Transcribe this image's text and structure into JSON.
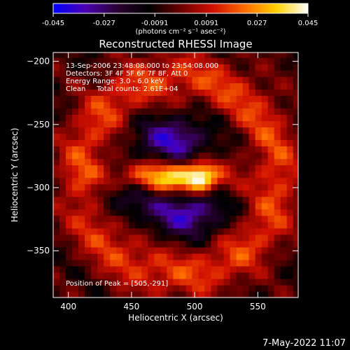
{
  "colorbar": {
    "ticks": [
      "-0.045",
      "-0.027",
      "-0.0091",
      "0.0091",
      "0.027",
      "0.045"
    ],
    "tick_values": [
      -0.045,
      -0.027,
      -0.0091,
      0.0091,
      0.027,
      0.045
    ],
    "range": [
      -0.045,
      0.045
    ],
    "colormap": [
      "#0000ff",
      "#4b00b4",
      "#2a0033",
      "#000000",
      "#6a0000",
      "#d01000",
      "#ff6a00",
      "#ffd000",
      "#ffffff"
    ]
  },
  "chart_data": {
    "type": "heatmap",
    "title": "Reconstructed RHESSI Image",
    "xlabel": "Heliocentric X (arcsec)",
    "ylabel": "Heliocentric Y (arcsec)",
    "colorbar_label": "(photons cm⁻² s⁻¹ asec⁻²)",
    "xlim": [
      388,
      582
    ],
    "ylim": [
      -387,
      -193
    ],
    "xticks": [
      400,
      450,
      500,
      550
    ],
    "yticks": [
      -200,
      -250,
      -300,
      -350
    ],
    "grid": false,
    "annotations": {
      "time": "13-Sep-2006 23:48:08.000 to 23:54:08.000",
      "detectors": "Detectors: 3F 4F 5F 6F 7F 8F, Att 0",
      "energy": "Energy Range: 3.0 - 6.0 keV",
      "method": "Clean     Total counts: 2.61E+04",
      "peak": "Position of Peak = [505,-291]"
    },
    "features": {
      "peak": [
        505,
        -291
      ],
      "bright_source": {
        "x": 478,
        "y": -292,
        "sx": 30,
        "sy": 9,
        "value": 0.045
      },
      "ring": {
        "center": [
          488,
          -290
        ],
        "radius": 78,
        "value": 0.02
      },
      "negative_lobes": [
        {
          "x": 483,
          "y": -262,
          "value": -0.03
        },
        {
          "x": 495,
          "y": -320,
          "value": -0.03
        },
        {
          "x": 445,
          "y": -305,
          "value": -0.02
        }
      ]
    }
  },
  "footer": {
    "date": "7-May-2022 11:07"
  }
}
